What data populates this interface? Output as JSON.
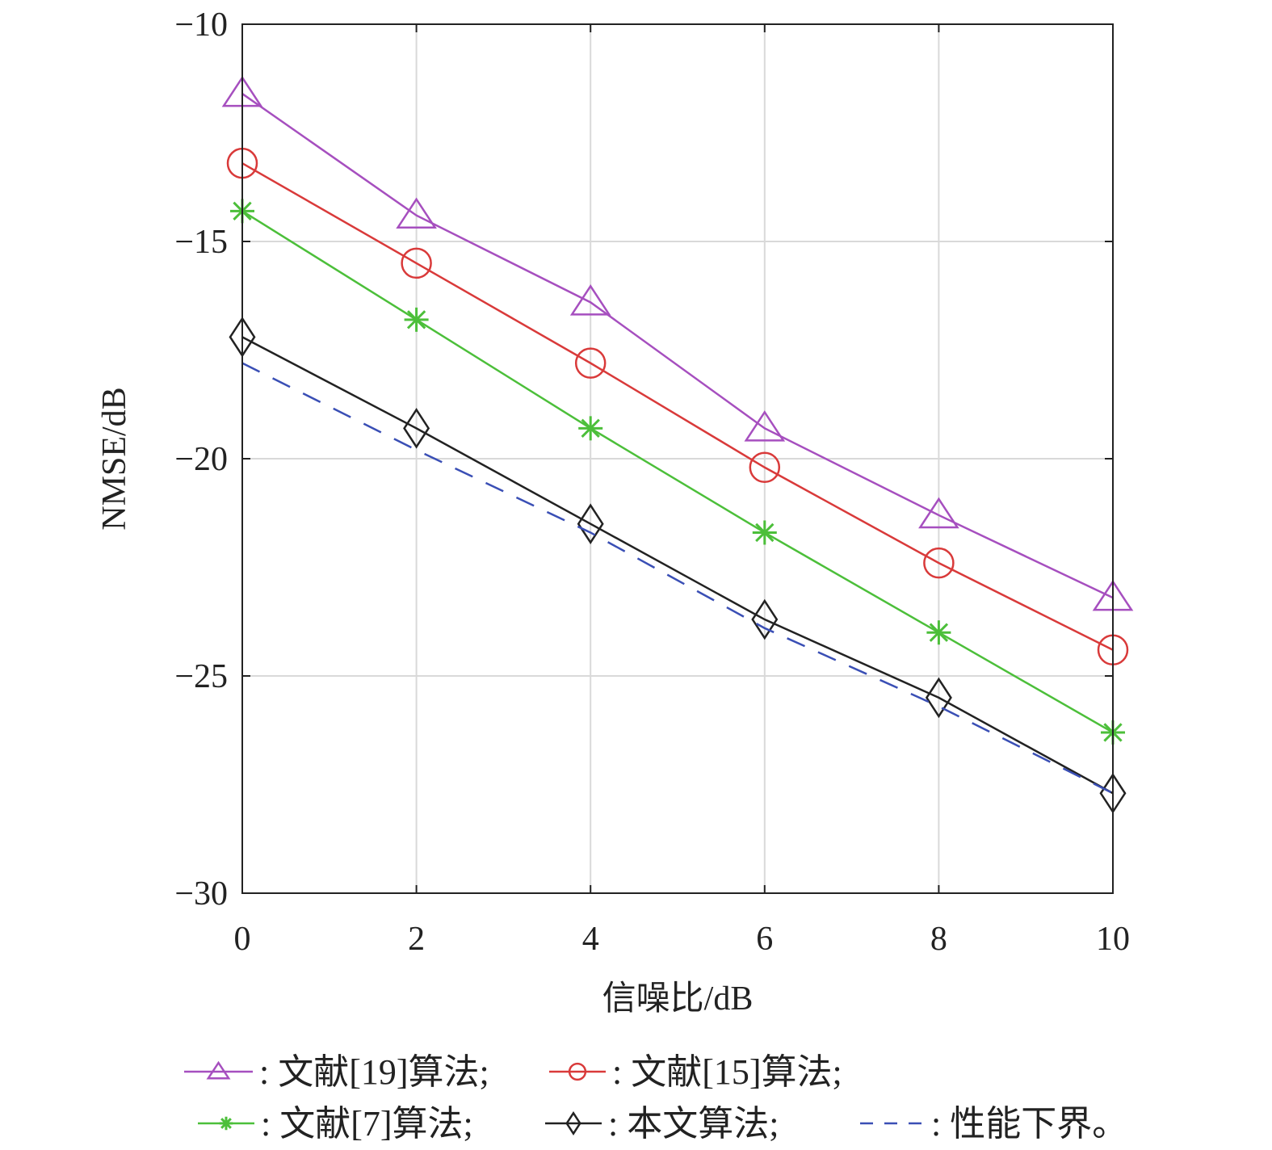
{
  "chart_data": {
    "type": "line",
    "xlabel": "信噪比/dB",
    "ylabel": "NMSE/dB",
    "xlim": [
      0,
      10
    ],
    "ylim": [
      -30,
      -10
    ],
    "xticks": [
      0,
      2,
      4,
      6,
      8,
      10
    ],
    "yticks": [
      -10,
      -15,
      -20,
      -25,
      -30
    ],
    "ytick_labels": [
      "−10",
      "−15",
      "−20",
      "−25",
      "−30"
    ],
    "xtick_labels": [
      "0",
      "2",
      "4",
      "6",
      "8",
      "10"
    ],
    "grid": true,
    "legend_position": "bottom",
    "x": [
      0,
      2,
      4,
      6,
      8,
      10
    ],
    "series": [
      {
        "name": ": 文献[19]算法;",
        "marker": "triangle",
        "color": "#a64fbf",
        "dash": false,
        "values": [
          -11.6,
          -14.4,
          -16.4,
          -19.3,
          -21.3,
          -23.2
        ]
      },
      {
        "name": ": 文献[15]算法;",
        "marker": "circle",
        "color": "#d93a3a",
        "dash": false,
        "values": [
          -13.2,
          -15.5,
          -17.8,
          -20.2,
          -22.4,
          -24.4
        ]
      },
      {
        "name": ": 文献[7]算法;",
        "marker": "star",
        "color": "#4cbf3a",
        "dash": false,
        "values": [
          -14.3,
          -16.8,
          -19.3,
          -21.7,
          -24.0,
          -26.3
        ]
      },
      {
        "name": ": 本文算法;",
        "marker": "diamond",
        "color": "#222222",
        "dash": false,
        "values": [
          -17.2,
          -19.3,
          -21.5,
          -23.7,
          -25.5,
          -27.7
        ]
      },
      {
        "name": ": 性能下界。",
        "marker": "none",
        "color": "#3a4fb5",
        "dash": true,
        "values": [
          -17.8,
          -19.8,
          -21.7,
          -23.9,
          -25.7,
          -27.7
        ]
      }
    ]
  }
}
